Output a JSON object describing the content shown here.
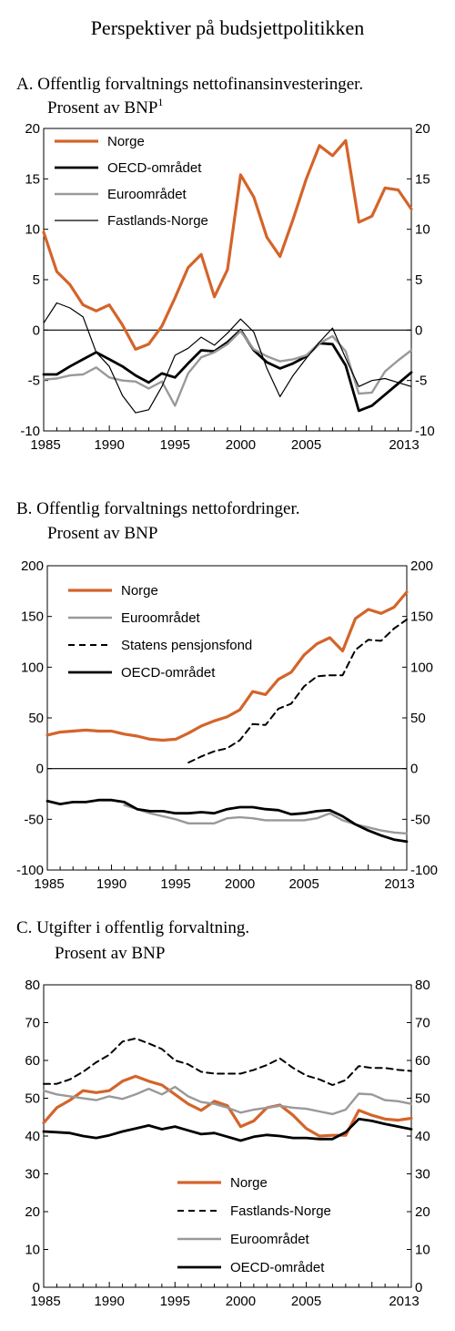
{
  "title": "Perspektiver på budsjettpolitikken",
  "colors": {
    "norge": "#d4642a",
    "oecd": "#000000",
    "euro": "#999999",
    "fastland": "#000000"
  },
  "chart_data": [
    {
      "type": "line",
      "title": "A.  Offentlig forvaltnings nettofinansinvesteringer.",
      "title_line2": "Prosent av BNP",
      "title_sup": "1",
      "x_ticks": [
        "1985",
        "1990",
        "1995",
        "2000",
        "2005",
        "2013"
      ],
      "y_ticks": [
        "20",
        "15",
        "10",
        "5",
        "0",
        "-5",
        "-10"
      ],
      "xlim": [
        1985,
        2013
      ],
      "ylim": [
        -10,
        20
      ],
      "legend_position": "top-left",
      "series": [
        {
          "name": "Norge",
          "x": [
            1985,
            1986,
            1987,
            1988,
            1989,
            1990,
            1991,
            1992,
            1993,
            1994,
            1995,
            1996,
            1997,
            1998,
            1999,
            2000,
            2001,
            2002,
            2003,
            2004,
            2005,
            2006,
            2007,
            2008,
            2009,
            2010,
            2011,
            2012,
            2013
          ],
          "values": [
            9.7,
            5.8,
            4.5,
            2.5,
            1.9,
            2.5,
            0.5,
            -1.9,
            -1.4,
            0.4,
            3.2,
            6.2,
            7.5,
            3.3,
            6.0,
            15.4,
            13.2,
            9.2,
            7.3,
            11.0,
            15.0,
            18.3,
            17.3,
            18.8,
            10.7,
            11.3,
            14.1,
            13.9,
            12.0
          ]
        },
        {
          "name": "OECD-området",
          "x": [
            1985,
            1986,
            1987,
            1988,
            1989,
            1990,
            1991,
            1992,
            1993,
            1994,
            1995,
            1996,
            1997,
            1998,
            1999,
            2000,
            2001,
            2002,
            2003,
            2004,
            2005,
            2006,
            2007,
            2008,
            2009,
            2010,
            2011,
            2012,
            2013
          ],
          "values": [
            -4.4,
            -4.4,
            -3.6,
            -2.9,
            -2.2,
            -2.9,
            -3.6,
            -4.5,
            -5.2,
            -4.3,
            -4.7,
            -3.3,
            -2.0,
            -2.1,
            -1.2,
            0.0,
            -2.0,
            -3.2,
            -3.8,
            -3.3,
            -2.6,
            -1.3,
            -1.4,
            -3.5,
            -8.0,
            -7.5,
            -6.4,
            -5.3,
            -4.2
          ]
        },
        {
          "name": "Euroområdet",
          "x": [
            1985,
            1986,
            1987,
            1988,
            1989,
            1990,
            1991,
            1992,
            1993,
            1994,
            1995,
            1996,
            1997,
            1998,
            1999,
            2000,
            2001,
            2002,
            2003,
            2004,
            2005,
            2006,
            2007,
            2008,
            2009,
            2010,
            2011,
            2012,
            2013
          ],
          "values": [
            -4.9,
            -4.8,
            -4.5,
            -4.4,
            -3.7,
            -4.7,
            -5.0,
            -5.1,
            -5.8,
            -5.1,
            -7.5,
            -4.3,
            -2.7,
            -2.2,
            -1.4,
            -0.1,
            -1.9,
            -2.6,
            -3.1,
            -2.9,
            -2.5,
            -1.3,
            -0.6,
            -2.1,
            -6.3,
            -6.2,
            -4.1,
            -3.0,
            -2.0
          ]
        },
        {
          "name": "Fastlands-Norge",
          "x": [
            1985,
            1986,
            1987,
            1988,
            1989,
            1990,
            1991,
            1992,
            1993,
            1994,
            1995,
            1996,
            1997,
            1998,
            1999,
            2000,
            2001,
            2002,
            2003,
            2004,
            2005,
            2006,
            2007,
            2008,
            2009,
            2010,
            2011,
            2012,
            2013
          ],
          "values": [
            0.7,
            2.7,
            2.2,
            1.3,
            -2.2,
            -3.6,
            -6.5,
            -8.2,
            -7.9,
            -5.6,
            -2.5,
            -1.8,
            -0.7,
            -1.5,
            -0.3,
            1.1,
            -0.2,
            -3.8,
            -6.6,
            -4.5,
            -2.8,
            -1.2,
            0.2,
            -2.8,
            -5.6,
            -5.0,
            -4.8,
            -5.2,
            -5.6
          ]
        }
      ]
    },
    {
      "type": "line",
      "title": "B.  Offentlig forvaltnings nettofordringer.",
      "title_line2": "Prosent av BNP",
      "x_ticks": [
        "1985",
        "1990",
        "1995",
        "2000",
        "2005",
        "2013"
      ],
      "y_ticks": [
        "200",
        "150",
        "100",
        "50",
        "0",
        "-50",
        "-100"
      ],
      "xlim": [
        1985,
        2013
      ],
      "ylim": [
        -100,
        200
      ],
      "legend_position": "top-left",
      "series": [
        {
          "name": "Norge",
          "x": [
            1985,
            1986,
            1987,
            1988,
            1989,
            1990,
            1991,
            1992,
            1993,
            1994,
            1995,
            1996,
            1997,
            1998,
            1999,
            2000,
            2001,
            2002,
            2003,
            2004,
            2005,
            2006,
            2007,
            2008,
            2009,
            2010,
            2011,
            2012,
            2013
          ],
          "values": [
            33,
            36,
            37,
            38,
            37,
            37,
            34,
            32,
            29,
            28,
            29,
            35,
            42,
            47,
            51,
            58,
            76,
            73,
            88,
            95,
            112,
            123,
            129,
            116,
            148,
            157,
            153,
            159,
            174
          ]
        },
        {
          "name": "Euroområdet",
          "x": [
            1991,
            1992,
            1993,
            1994,
            1995,
            1996,
            1997,
            1998,
            1999,
            2000,
            2001,
            2002,
            2003,
            2004,
            2005,
            2006,
            2007,
            2008,
            2009,
            2010,
            2011,
            2012,
            2013
          ],
          "values": [
            -36,
            -40,
            -44,
            -47,
            -50,
            -54,
            -54,
            -54,
            -49,
            -48,
            -49,
            -51,
            -51,
            -51,
            -51,
            -49,
            -44,
            -51,
            -55,
            -58,
            -61,
            -63,
            -64
          ]
        },
        {
          "name": "Statens pensjonsfond",
          "x": [
            1996,
            1997,
            1998,
            1999,
            2000,
            2001,
            2002,
            2003,
            2004,
            2005,
            2006,
            2007,
            2008,
            2009,
            2010,
            2011,
            2012,
            2013
          ],
          "values": [
            6,
            12,
            17,
            20,
            28,
            44,
            43,
            59,
            64,
            81,
            91,
            92,
            92,
            117,
            127,
            126,
            138,
            147
          ]
        },
        {
          "name": "OECD-området",
          "x": [
            1985,
            1986,
            1987,
            1988,
            1989,
            1990,
            1991,
            1992,
            1993,
            1994,
            1995,
            1996,
            1997,
            1998,
            1999,
            2000,
            2001,
            2002,
            2003,
            2004,
            2005,
            2006,
            2007,
            2008,
            2009,
            2010,
            2011,
            2012,
            2013
          ],
          "values": [
            -32,
            -35,
            -33,
            -33,
            -31,
            -31,
            -33,
            -40,
            -42,
            -42,
            -44,
            -44,
            -43,
            -44,
            -40,
            -38,
            -38,
            -40,
            -41,
            -45,
            -44,
            -42,
            -41,
            -47,
            -55,
            -61,
            -66,
            -70,
            -72
          ]
        }
      ]
    },
    {
      "type": "line",
      "title": "C.  Utgifter i offentlig forvaltning.",
      "title_line2": "Prosent av BNP",
      "x_ticks": [
        "1985",
        "1990",
        "1995",
        "2000",
        "2005",
        "2013"
      ],
      "y_ticks": [
        "80",
        "70",
        "60",
        "50",
        "40",
        "30",
        "20",
        "10",
        "0"
      ],
      "xlim": [
        1985,
        2013
      ],
      "ylim": [
        0,
        80
      ],
      "legend_position": "bottom-center",
      "series": [
        {
          "name": "Norge",
          "x": [
            1985,
            1986,
            1987,
            1988,
            1989,
            1990,
            1991,
            1992,
            1993,
            1994,
            1995,
            1996,
            1997,
            1998,
            1999,
            2000,
            2001,
            2002,
            2003,
            2004,
            2005,
            2006,
            2007,
            2008,
            2009,
            2010,
            2011,
            2012,
            2013
          ],
          "values": [
            43.5,
            47.5,
            49.5,
            52,
            51.5,
            52,
            54.5,
            55.8,
            54.5,
            53.5,
            51,
            48.5,
            46.8,
            49.2,
            48,
            42.5,
            44,
            47.5,
            48.2,
            45.5,
            42,
            40,
            40.2,
            40.2,
            46.8,
            45.5,
            44.5,
            44.2,
            44.7
          ]
        },
        {
          "name": "Fastlands-Norge",
          "x": [
            1985,
            1986,
            1987,
            1988,
            1989,
            1990,
            1991,
            1992,
            1993,
            1994,
            1995,
            1996,
            1997,
            1998,
            1999,
            2000,
            2001,
            2002,
            2003,
            2004,
            2005,
            2006,
            2007,
            2008,
            2009,
            2010,
            2011,
            2012,
            2013
          ],
          "values": [
            53.8,
            53.8,
            55,
            57,
            59.5,
            61.5,
            65,
            65.8,
            64.5,
            63,
            60,
            59,
            57,
            56.5,
            56.5,
            56.5,
            57.5,
            58.8,
            60.5,
            58,
            56,
            55,
            53.5,
            54.8,
            58.5,
            58,
            58,
            57.5,
            57.2
          ]
        },
        {
          "name": "Euroområdet",
          "x": [
            1985,
            1986,
            1987,
            1988,
            1989,
            1990,
            1991,
            1992,
            1993,
            1994,
            1995,
            1996,
            1997,
            1998,
            1999,
            2000,
            2001,
            2002,
            2003,
            2004,
            2005,
            2006,
            2007,
            2008,
            2009,
            2010,
            2011,
            2012,
            2013
          ],
          "values": [
            52,
            51,
            50.5,
            50,
            49.5,
            50.5,
            49.8,
            51,
            52.5,
            51,
            53,
            50.5,
            49,
            48.5,
            47.5,
            46.2,
            47,
            47.5,
            48,
            47.5,
            47.2,
            46.5,
            45.8,
            47,
            51.2,
            51,
            49.5,
            49.2,
            48.5
          ]
        },
        {
          "name": "OECD-området",
          "x": [
            1985,
            1986,
            1987,
            1988,
            1989,
            1990,
            1991,
            1992,
            1993,
            1994,
            1995,
            1996,
            1997,
            1998,
            1999,
            2000,
            2001,
            2002,
            2003,
            2004,
            2005,
            2006,
            2007,
            2008,
            2009,
            2010,
            2011,
            2012,
            2013
          ],
          "values": [
            41.2,
            41,
            40.8,
            40,
            39.5,
            40.2,
            41.2,
            42,
            42.8,
            41.8,
            42.5,
            41.5,
            40.5,
            40.8,
            39.8,
            38.8,
            39.8,
            40.3,
            40,
            39.5,
            39.5,
            39.2,
            39.2,
            41,
            44.5,
            44,
            43.2,
            42.5,
            41.8
          ]
        }
      ]
    }
  ]
}
